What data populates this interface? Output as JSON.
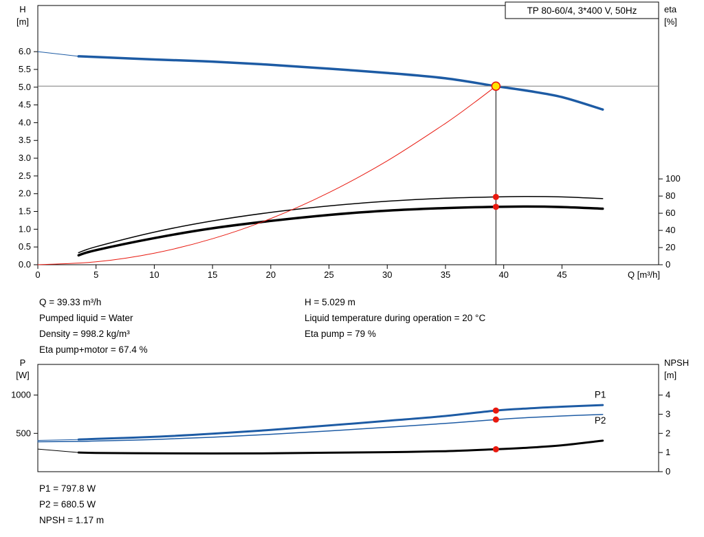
{
  "title_box": "TP 80-60/4, 3*400 V, 50Hz",
  "colors": {
    "curve_blue": "#1d5ba4",
    "curve_black": "#000000",
    "duty_red": "#e8190f",
    "duty_yellow": "#ffe400",
    "duty_line_gray": "#7a7a7a",
    "axis_black": "#000000"
  },
  "info_top": {
    "col1": [
      "Q = 39.33 m³/h",
      "Pumped liquid = Water",
      "Density = 998.2 kg/m³",
      "Eta pump+motor = 67.4 %"
    ],
    "col2": [
      "H = 5.029 m",
      "Liquid temperature during operation = 20 °C",
      "Eta pump = 79 %"
    ]
  },
  "info_bottom": [
    "P1 = 797.8 W",
    "P2 = 680.5 W",
    "NPSH = 1.17 m"
  ],
  "chart_data": [
    {
      "id": "head-eta",
      "type": "line",
      "title": "TP 80-60/4, 3*400 V, 50Hz",
      "x_axis": {
        "label": "Q [m³/h]",
        "min": 0,
        "max": 53.3,
        "ticks": [
          0,
          5,
          10,
          15,
          20,
          25,
          30,
          35,
          40,
          45
        ]
      },
      "y_left": {
        "label": "H [m]",
        "min": 0,
        "max": 7.3,
        "decimals": 1,
        "ticks": [
          0,
          0.5,
          1,
          1.5,
          2,
          2.5,
          3,
          3.5,
          4,
          4.5,
          5,
          5.5,
          6
        ]
      },
      "y_right": {
        "label": "eta [%]",
        "ticks": [
          0,
          20,
          40,
          60,
          80,
          100
        ],
        "left_units_per_unit": 0.02417
      },
      "legend_position": "none",
      "grid": false,
      "series": [
        {
          "name": "head-curve-lead",
          "axis": "left",
          "width": 1,
          "color_key": "curve_blue",
          "points": [
            [
              0,
              6.0
            ],
            [
              3.5,
              5.87
            ]
          ]
        },
        {
          "name": "head-curve",
          "axis": "left",
          "width": 3.5,
          "color_key": "curve_blue",
          "points": [
            [
              3.5,
              5.87
            ],
            [
              5,
              5.85
            ],
            [
              10,
              5.78
            ],
            [
              15,
              5.72
            ],
            [
              20,
              5.63
            ],
            [
              25,
              5.52
            ],
            [
              30,
              5.4
            ],
            [
              35,
              5.25
            ],
            [
              39.33,
              5.029
            ],
            [
              42,
              4.9
            ],
            [
              45,
              4.72
            ],
            [
              48.5,
              4.37
            ]
          ]
        },
        {
          "name": "eta-pump",
          "axis": "right",
          "width": 1.5,
          "color_key": "curve_black",
          "points": [
            [
              3.5,
              14
            ],
            [
              5,
              21
            ],
            [
              10,
              38
            ],
            [
              15,
              51
            ],
            [
              20,
              61
            ],
            [
              25,
              68.5
            ],
            [
              30,
              74
            ],
            [
              35,
              77.5
            ],
            [
              39.33,
              79
            ],
            [
              42,
              79.5
            ],
            [
              45,
              79
            ],
            [
              48.5,
              77
            ]
          ]
        },
        {
          "name": "eta-pump-motor",
          "axis": "right",
          "width": 3.5,
          "color_key": "curve_black",
          "points": [
            [
              3.5,
              11
            ],
            [
              5,
              17
            ],
            [
              10,
              31
            ],
            [
              15,
              42.5
            ],
            [
              20,
              51
            ],
            [
              25,
              58
            ],
            [
              30,
              63
            ],
            [
              35,
              66
            ],
            [
              39.33,
              67.4
            ],
            [
              42,
              67.8
            ],
            [
              45,
              67.2
            ],
            [
              48.5,
              65.3
            ]
          ]
        },
        {
          "name": "system-curve",
          "axis": "left",
          "width": 1,
          "color_key": "duty_red",
          "points": [
            [
              0,
              0
            ],
            [
              5,
              0.081
            ],
            [
              10,
              0.325
            ],
            [
              15,
              0.731
            ],
            [
              20,
              1.3
            ],
            [
              25,
              2.031
            ],
            [
              30,
              2.925
            ],
            [
              35,
              3.982
            ],
            [
              37.5,
              4.571
            ],
            [
              39.33,
              5.029
            ]
          ]
        }
      ],
      "duty_point": {
        "q": 39.33,
        "h": 5.029,
        "eta_pump": 79,
        "eta_pump_motor": 67.4
      }
    },
    {
      "id": "power-npsh",
      "type": "line",
      "x_axis": {
        "label": "",
        "min": 0,
        "max": 53.3,
        "ticks": []
      },
      "y_left": {
        "label": "P [W]",
        "min": 0,
        "max": 1400,
        "decimals": 0,
        "ticks": [
          500,
          1000
        ]
      },
      "y_right": {
        "label": "NPSH [m]",
        "ticks": [
          0,
          1,
          2,
          3,
          4
        ],
        "left_units_per_unit": 250
      },
      "legend_position": "inline-right",
      "grid": false,
      "series": [
        {
          "name": "p1-lead",
          "axis": "left",
          "width": 1,
          "color_key": "curve_blue",
          "points": [
            [
              0,
              408
            ],
            [
              3.5,
              420
            ]
          ]
        },
        {
          "name": "p1-curve",
          "axis": "left",
          "width": 3,
          "color_key": "curve_blue",
          "points": [
            [
              3.5,
              420
            ],
            [
              5,
              428
            ],
            [
              10,
              455
            ],
            [
              15,
              495
            ],
            [
              20,
              545
            ],
            [
              25,
              603
            ],
            [
              30,
              664
            ],
            [
              35,
              727
            ],
            [
              39.33,
              797.8
            ],
            [
              42,
              825
            ],
            [
              45,
              848
            ],
            [
              48.5,
              870
            ]
          ]
        },
        {
          "name": "p2-curve",
          "axis": "left",
          "width": 1.5,
          "color_key": "curve_blue",
          "points": [
            [
              0,
              390
            ],
            [
              3.5,
              395
            ],
            [
              5,
              400
            ],
            [
              10,
              420
            ],
            [
              15,
              450
            ],
            [
              20,
              488
            ],
            [
              25,
              532
            ],
            [
              30,
              580
            ],
            [
              35,
              630
            ],
            [
              39.33,
              680.5
            ],
            [
              42,
              705
            ],
            [
              45,
              727
            ],
            [
              48.5,
              748
            ]
          ]
        },
        {
          "name": "npsh-lead",
          "axis": "right",
          "width": 1,
          "color_key": "curve_black",
          "points": [
            [
              0,
              1.18
            ],
            [
              3.5,
              1.0
            ]
          ]
        },
        {
          "name": "npsh-curve",
          "axis": "right",
          "width": 3,
          "color_key": "curve_black",
          "points": [
            [
              3.5,
              1.0
            ],
            [
              5,
              0.98
            ],
            [
              10,
              0.96
            ],
            [
              15,
              0.95
            ],
            [
              20,
              0.96
            ],
            [
              25,
              0.99
            ],
            [
              30,
              1.02
            ],
            [
              35,
              1.07
            ],
            [
              39.33,
              1.17
            ],
            [
              42,
              1.25
            ],
            [
              45,
              1.38
            ],
            [
              48.5,
              1.62
            ]
          ]
        }
      ],
      "series_labels": [
        {
          "text": "P1",
          "q": 47.8,
          "value": 1000,
          "axis": "left"
        },
        {
          "text": "P2",
          "q": 47.8,
          "value": 665,
          "axis": "left"
        }
      ],
      "duty_point": {
        "q": 39.33,
        "p1": 797.8,
        "p2": 680.5,
        "npsh": 1.17
      }
    }
  ]
}
